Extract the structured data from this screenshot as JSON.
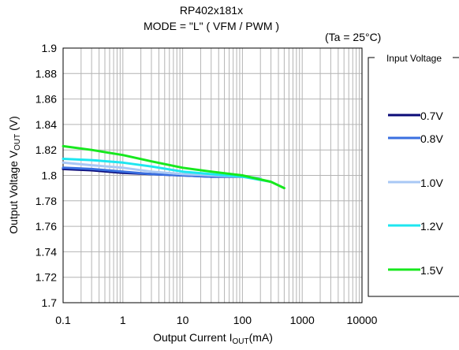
{
  "chart_data": {
    "type": "line",
    "title_line1": "RP402x181x",
    "title_line2": "MODE = \"L\" ( VFM / PWM )",
    "annotation": "(Ta = 25°C)",
    "xlabel_main": "Output Current  I",
    "xlabel_sub": "OUT",
    "xlabel_unit": "(mA)",
    "ylabel_main": "Output Voltage V",
    "ylabel_sub": "OUT",
    "ylabel_unit": " (V)",
    "x_scale": "log",
    "xlim": [
      0.1,
      10000
    ],
    "ylim": [
      1.7,
      1.9
    ],
    "x_ticks": [
      0.1,
      1,
      10,
      100,
      1000,
      10000
    ],
    "x_tick_labels": [
      "0.1",
      "1",
      "10",
      "100",
      "1000",
      "10000"
    ],
    "y_ticks": [
      1.7,
      1.72,
      1.74,
      1.76,
      1.78,
      1.8,
      1.82,
      1.84,
      1.86,
      1.88,
      1.9
    ],
    "y_tick_labels": [
      "1.7",
      "1.72",
      "1.74",
      "1.76",
      "1.78",
      "1.8",
      "1.82",
      "1.84",
      "1.86",
      "1.88",
      "1.9"
    ],
    "grid": true,
    "legend_title": "Input Voltage",
    "legend_position": "right",
    "series": [
      {
        "name": "0.7V",
        "color": "#0a0a78",
        "x": [
          0.1,
          0.3,
          1,
          3,
          10,
          30,
          100,
          120
        ],
        "y": [
          1.805,
          1.804,
          1.802,
          1.801,
          1.8,
          1.799,
          1.799,
          1.799
        ]
      },
      {
        "name": "0.8V",
        "color": "#3a6fe0",
        "x": [
          0.1,
          0.3,
          1,
          3,
          10,
          30,
          100,
          150
        ],
        "y": [
          1.806,
          1.805,
          1.803,
          1.801,
          1.8,
          1.799,
          1.799,
          1.798
        ]
      },
      {
        "name": "1.0V",
        "color": "#a9c8f5",
        "x": [
          0.1,
          0.3,
          1,
          3,
          10,
          30,
          100,
          200
        ],
        "y": [
          1.81,
          1.808,
          1.806,
          1.803,
          1.801,
          1.8,
          1.799,
          1.798
        ]
      },
      {
        "name": "1.2V",
        "color": "#1ee6f0",
        "x": [
          0.1,
          0.3,
          1,
          3,
          10,
          30,
          100,
          300
        ],
        "y": [
          1.813,
          1.812,
          1.81,
          1.807,
          1.803,
          1.801,
          1.799,
          1.795
        ]
      },
      {
        "name": "1.5V",
        "color": "#17e81e",
        "x": [
          0.1,
          0.3,
          1,
          3,
          10,
          30,
          100,
          300,
          500
        ],
        "y": [
          1.823,
          1.82,
          1.816,
          1.811,
          1.806,
          1.803,
          1.8,
          1.795,
          1.79
        ]
      }
    ]
  }
}
